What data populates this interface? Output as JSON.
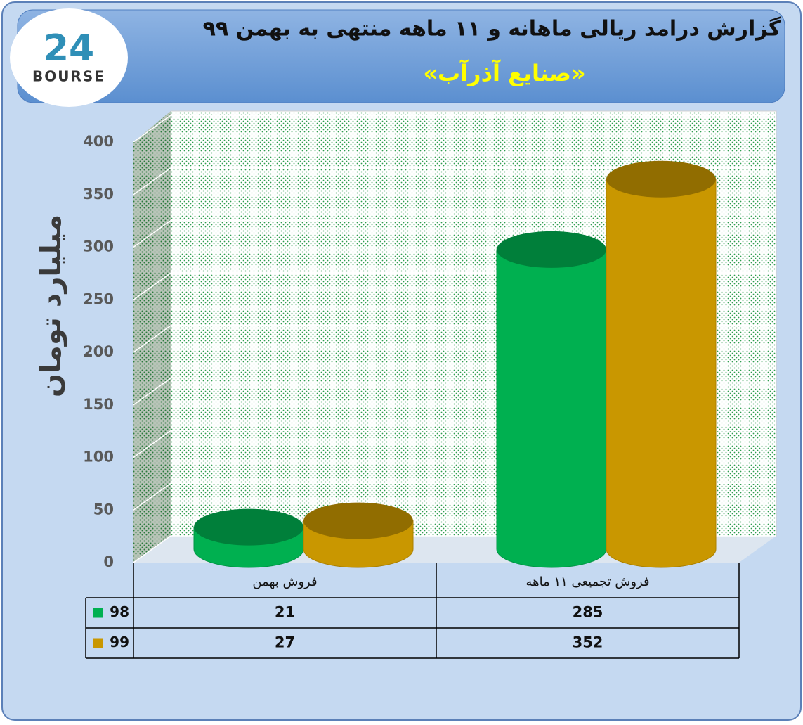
{
  "logo": {
    "mark": "24",
    "name": "BOURSE"
  },
  "chart_data": {
    "type": "cylinder-bar",
    "title": "گزارش درامد ریالی ماهانه و ۱۱ ماهه منتهی به بهمن ۹۹",
    "subtitle": "«صنایع آذرآب»",
    "y_label": "میلیارد تومان",
    "categories": [
      "فروش بهمن",
      "فروش تجمیعی ۱۱ ماهه"
    ],
    "series": [
      {
        "name": "98",
        "color": "#00b050",
        "values": [
          21,
          285
        ]
      },
      {
        "name": "99",
        "color": "#c99700",
        "values": [
          27,
          352
        ]
      }
    ],
    "ylim": [
      0,
      400
    ],
    "yticks": [
      0,
      50,
      100,
      150,
      200,
      250,
      300,
      350,
      400
    ],
    "grid": true,
    "data_table": true
  }
}
